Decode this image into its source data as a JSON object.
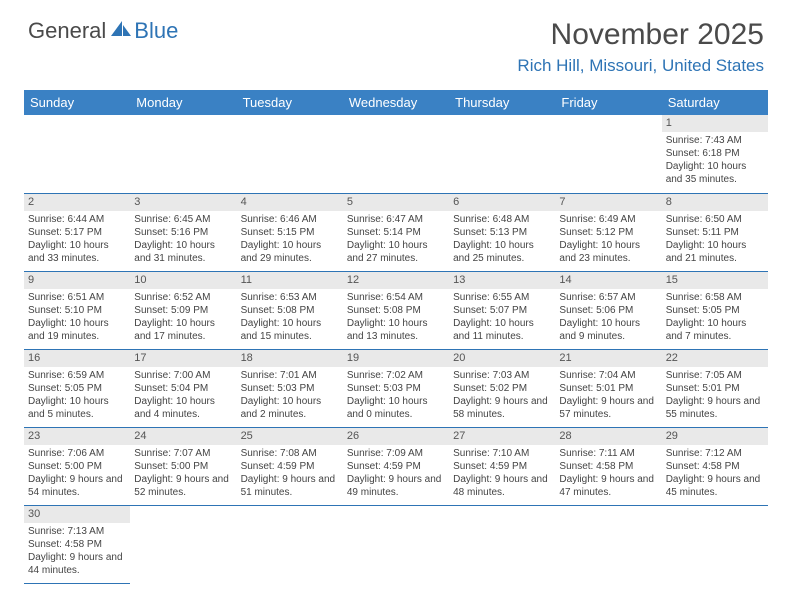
{
  "brand": {
    "word1": "General",
    "word2": "Blue"
  },
  "title": "November 2025",
  "location": "Rich Hill, Missouri, United States",
  "colors": {
    "header_bg": "#3a81c4",
    "accent": "#2e74b5",
    "daynum_bg": "#e9e9e9",
    "text": "#3a3a3a"
  },
  "weekdays": [
    "Sunday",
    "Monday",
    "Tuesday",
    "Wednesday",
    "Thursday",
    "Friday",
    "Saturday"
  ],
  "grid": [
    [
      null,
      null,
      null,
      null,
      null,
      null,
      {
        "n": "1",
        "sr": "7:43 AM",
        "ss": "6:18 PM",
        "dl": "10 hours and 35 minutes."
      }
    ],
    [
      {
        "n": "2",
        "sr": "6:44 AM",
        "ss": "5:17 PM",
        "dl": "10 hours and 33 minutes."
      },
      {
        "n": "3",
        "sr": "6:45 AM",
        "ss": "5:16 PM",
        "dl": "10 hours and 31 minutes."
      },
      {
        "n": "4",
        "sr": "6:46 AM",
        "ss": "5:15 PM",
        "dl": "10 hours and 29 minutes."
      },
      {
        "n": "5",
        "sr": "6:47 AM",
        "ss": "5:14 PM",
        "dl": "10 hours and 27 minutes."
      },
      {
        "n": "6",
        "sr": "6:48 AM",
        "ss": "5:13 PM",
        "dl": "10 hours and 25 minutes."
      },
      {
        "n": "7",
        "sr": "6:49 AM",
        "ss": "5:12 PM",
        "dl": "10 hours and 23 minutes."
      },
      {
        "n": "8",
        "sr": "6:50 AM",
        "ss": "5:11 PM",
        "dl": "10 hours and 21 minutes."
      }
    ],
    [
      {
        "n": "9",
        "sr": "6:51 AM",
        "ss": "5:10 PM",
        "dl": "10 hours and 19 minutes."
      },
      {
        "n": "10",
        "sr": "6:52 AM",
        "ss": "5:09 PM",
        "dl": "10 hours and 17 minutes."
      },
      {
        "n": "11",
        "sr": "6:53 AM",
        "ss": "5:08 PM",
        "dl": "10 hours and 15 minutes."
      },
      {
        "n": "12",
        "sr": "6:54 AM",
        "ss": "5:08 PM",
        "dl": "10 hours and 13 minutes."
      },
      {
        "n": "13",
        "sr": "6:55 AM",
        "ss": "5:07 PM",
        "dl": "10 hours and 11 minutes."
      },
      {
        "n": "14",
        "sr": "6:57 AM",
        "ss": "5:06 PM",
        "dl": "10 hours and 9 minutes."
      },
      {
        "n": "15",
        "sr": "6:58 AM",
        "ss": "5:05 PM",
        "dl": "10 hours and 7 minutes."
      }
    ],
    [
      {
        "n": "16",
        "sr": "6:59 AM",
        "ss": "5:05 PM",
        "dl": "10 hours and 5 minutes."
      },
      {
        "n": "17",
        "sr": "7:00 AM",
        "ss": "5:04 PM",
        "dl": "10 hours and 4 minutes."
      },
      {
        "n": "18",
        "sr": "7:01 AM",
        "ss": "5:03 PM",
        "dl": "10 hours and 2 minutes."
      },
      {
        "n": "19",
        "sr": "7:02 AM",
        "ss": "5:03 PM",
        "dl": "10 hours and 0 minutes."
      },
      {
        "n": "20",
        "sr": "7:03 AM",
        "ss": "5:02 PM",
        "dl": "9 hours and 58 minutes."
      },
      {
        "n": "21",
        "sr": "7:04 AM",
        "ss": "5:01 PM",
        "dl": "9 hours and 57 minutes."
      },
      {
        "n": "22",
        "sr": "7:05 AM",
        "ss": "5:01 PM",
        "dl": "9 hours and 55 minutes."
      }
    ],
    [
      {
        "n": "23",
        "sr": "7:06 AM",
        "ss": "5:00 PM",
        "dl": "9 hours and 54 minutes."
      },
      {
        "n": "24",
        "sr": "7:07 AM",
        "ss": "5:00 PM",
        "dl": "9 hours and 52 minutes."
      },
      {
        "n": "25",
        "sr": "7:08 AM",
        "ss": "4:59 PM",
        "dl": "9 hours and 51 minutes."
      },
      {
        "n": "26",
        "sr": "7:09 AM",
        "ss": "4:59 PM",
        "dl": "9 hours and 49 minutes."
      },
      {
        "n": "27",
        "sr": "7:10 AM",
        "ss": "4:59 PM",
        "dl": "9 hours and 48 minutes."
      },
      {
        "n": "28",
        "sr": "7:11 AM",
        "ss": "4:58 PM",
        "dl": "9 hours and 47 minutes."
      },
      {
        "n": "29",
        "sr": "7:12 AM",
        "ss": "4:58 PM",
        "dl": "9 hours and 45 minutes."
      }
    ],
    [
      {
        "n": "30",
        "sr": "7:13 AM",
        "ss": "4:58 PM",
        "dl": "9 hours and 44 minutes."
      },
      null,
      null,
      null,
      null,
      null,
      null
    ]
  ],
  "labels": {
    "sunrise": "Sunrise:",
    "sunset": "Sunset:",
    "daylight": "Daylight:"
  }
}
